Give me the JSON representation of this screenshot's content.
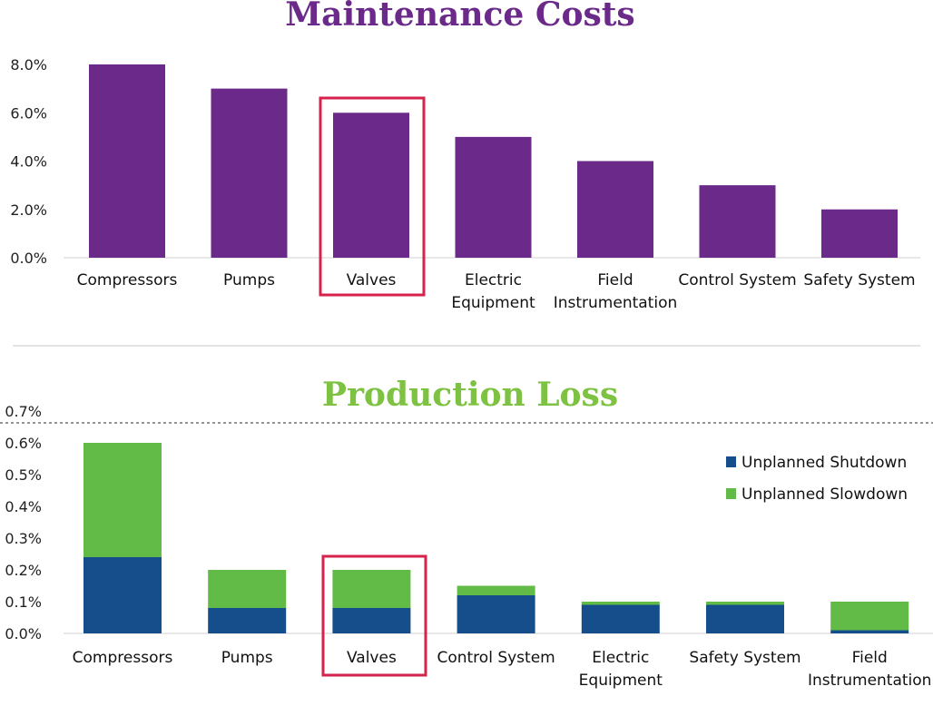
{
  "colors": {
    "maintenance_bar": "#6b2a8a",
    "maintenance_title": "#6b2a8a",
    "production_title": "#7dc242",
    "shutdown": "#164e8c",
    "slowdown": "#62bb46",
    "highlight": "#d6224d"
  },
  "chart_data": [
    {
      "type": "bar",
      "title": "Maintenance Costs",
      "categories": [
        "Compressors",
        "Pumps",
        "Valves",
        "Electric Equipment",
        "Field Instrumentation",
        "Control System",
        "Safety System"
      ],
      "category_lines": [
        [
          "Compressors"
        ],
        [
          "Pumps"
        ],
        [
          "Valves"
        ],
        [
          "Electric",
          "Equipment"
        ],
        [
          "Field",
          "Instrumentation"
        ],
        [
          "Control System"
        ],
        [
          "Safety System"
        ]
      ],
      "values": [
        8.0,
        7.0,
        6.0,
        5.0,
        4.0,
        3.0,
        2.0
      ],
      "ylim": [
        0,
        8
      ],
      "yticks": [
        "0.0%",
        "2.0%",
        "4.0%",
        "6.0%",
        "8.0%"
      ],
      "ytick_values": [
        0,
        2,
        4,
        6,
        8
      ],
      "highlighted_category": "Valves",
      "grid": false
    },
    {
      "type": "bar",
      "stacked": true,
      "title": "Production Loss",
      "categories": [
        "Compressors",
        "Pumps",
        "Valves",
        "Control System",
        "Electric Equipment",
        "Safety System",
        "Field Instrumentation"
      ],
      "category_lines": [
        [
          "Compressors"
        ],
        [
          "Pumps"
        ],
        [
          "Valves"
        ],
        [
          "Control System"
        ],
        [
          "Electric",
          "Equipment"
        ],
        [
          "Safety System"
        ],
        [
          "Field",
          "Instrumentation"
        ]
      ],
      "series": [
        {
          "name": "Unplanned Shutdown",
          "values": [
            0.24,
            0.08,
            0.08,
            0.12,
            0.09,
            0.09,
            0.01
          ]
        },
        {
          "name": "Unplanned Slowdown",
          "values": [
            0.36,
            0.12,
            0.12,
            0.03,
            0.01,
            0.01,
            0.09
          ]
        }
      ],
      "ylim": [
        0,
        0.7
      ],
      "yticks": [
        "0.0%",
        "0.1%",
        "0.2%",
        "0.3%",
        "0.4%",
        "0.5%",
        "0.6%",
        "0.7%"
      ],
      "ytick_values": [
        0,
        0.1,
        0.2,
        0.3,
        0.4,
        0.5,
        0.6,
        0.7
      ],
      "highlighted_category": "Valves",
      "legend_position": "top-right",
      "grid": false
    }
  ]
}
